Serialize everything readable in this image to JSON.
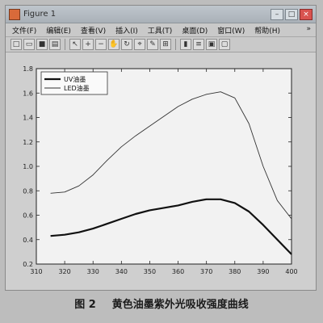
{
  "window": {
    "title": "Figure 1",
    "menu": [
      "文件(F)",
      "编辑(E)",
      "查看(V)",
      "插入(I)",
      "工具(T)",
      "桌面(D)",
      "窗口(W)",
      "帮助(H)"
    ],
    "menu_more": "»",
    "minimize_label": "–",
    "maximize_label": "□",
    "close_label": "×"
  },
  "toolbar": {
    "icons": [
      "new-figure-icon",
      "open-file-icon",
      "save-icon",
      "print-icon",
      "pointer-icon",
      "zoom-in-icon",
      "zoom-out-icon",
      "pan-icon",
      "rotate-icon",
      "data-cursor-icon",
      "brush-icon",
      "link-icon",
      "colorbar-icon",
      "legend-icon",
      "hide-plot-tools-icon",
      "show-plot-tools-icon"
    ]
  },
  "chart_data": {
    "type": "line",
    "title": "",
    "xlabel": "",
    "ylabel": "",
    "xlim": [
      310,
      400
    ],
    "ylim": [
      0.2,
      1.8
    ],
    "x_ticks": [
      310,
      320,
      330,
      340,
      350,
      360,
      370,
      380,
      390,
      400
    ],
    "y_ticks": [
      0.2,
      0.4,
      0.6,
      0.8,
      1.0,
      1.2,
      1.4,
      1.6,
      1.8
    ],
    "grid": false,
    "legend_position": "top-left",
    "series": [
      {
        "name": "UV油墨",
        "style": "thick",
        "color": "#111111",
        "x": [
          315,
          320,
          325,
          330,
          335,
          340,
          345,
          350,
          355,
          360,
          365,
          370,
          375,
          380,
          385,
          390,
          395,
          400
        ],
        "y": [
          0.43,
          0.44,
          0.46,
          0.49,
          0.53,
          0.57,
          0.61,
          0.64,
          0.66,
          0.68,
          0.71,
          0.73,
          0.73,
          0.7,
          0.63,
          0.52,
          0.4,
          0.28
        ]
      },
      {
        "name": "LED油墨",
        "style": "thin",
        "color": "#333333",
        "x": [
          315,
          320,
          325,
          330,
          335,
          340,
          345,
          350,
          355,
          360,
          365,
          370,
          375,
          380,
          385,
          390,
          395,
          400
        ],
        "y": [
          0.78,
          0.79,
          0.84,
          0.93,
          1.05,
          1.16,
          1.25,
          1.33,
          1.41,
          1.49,
          1.55,
          1.59,
          1.61,
          1.56,
          1.35,
          1.0,
          0.72,
          0.57
        ]
      }
    ]
  },
  "caption": {
    "label": "图 2",
    "text": "黄色油墨紫外光吸收强度曲线"
  }
}
